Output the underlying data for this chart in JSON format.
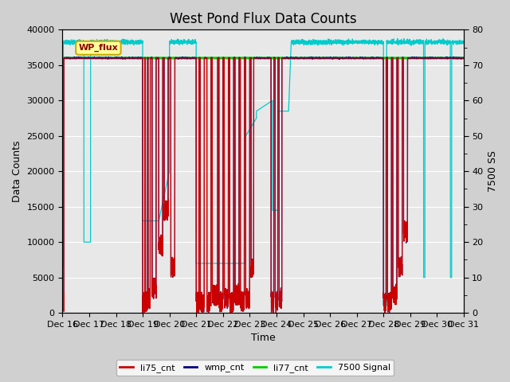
{
  "title": "West Pond Flux Data Counts",
  "ylabel_left": "Data Counts",
  "ylabel_right": "7500 SS",
  "xlabel": "Time",
  "xlim_days": [
    16,
    31
  ],
  "ylim_left": [
    0,
    40000
  ],
  "ylim_right": [
    0,
    80
  ],
  "xtick_labels": [
    "Dec 16",
    "Dec 17",
    "Dec 18",
    "Dec 19",
    "Dec 20",
    "Dec 21",
    "Dec 22",
    "Dec 23",
    "Dec 24",
    "Dec 25",
    "Dec 26",
    "Dec 27",
    "Dec 28",
    "Dec 29",
    "Dec 30",
    "Dec 31"
  ],
  "yticks_left": [
    0,
    5000,
    10000,
    15000,
    20000,
    25000,
    30000,
    35000,
    40000
  ],
  "yticks_right_major": [
    0,
    10,
    20,
    30,
    40,
    50,
    60,
    70,
    80
  ],
  "yticks_right_minor": [
    5,
    15,
    25,
    35,
    45,
    55,
    65,
    75
  ],
  "li75_color": "#cc0000",
  "wmp_color": "#000080",
  "li77_color": "#00cc00",
  "signal_color": "#00cccc",
  "fig_bg_color": "#d0d0d0",
  "plot_bg_color": "#e8e8e8",
  "legend_box_facecolor": "#ffff99",
  "legend_box_edgecolor": "#ccaa00",
  "annotation_text": "WP_flux",
  "li77_cnt_value": 36000,
  "title_fontsize": 12,
  "axis_fontsize": 9,
  "tick_fontsize": 8
}
